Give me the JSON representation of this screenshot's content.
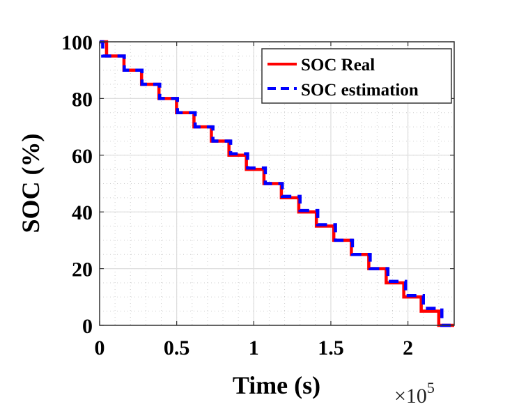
{
  "chart_data": {
    "type": "line",
    "title": "",
    "xlabel": "Time (s)",
    "ylabel": "SOC (%)",
    "x_multiplier": "×10",
    "x_multiplier_exp": "5",
    "xlim": [
      0,
      2.3
    ],
    "ylim": [
      0,
      100
    ],
    "xticks": [
      0,
      0.5,
      1,
      1.5,
      2
    ],
    "xtick_labels": [
      "0",
      "0.5",
      "1",
      "1.5",
      "2"
    ],
    "yticks": [
      0,
      20,
      40,
      60,
      80,
      100
    ],
    "ytick_labels": [
      "0",
      "20",
      "40",
      "60",
      "80",
      "100"
    ],
    "grid": true,
    "minor_grid": true,
    "legend_position": "top-right",
    "series": [
      {
        "name": "SOC Real",
        "color": "#ff0000",
        "style": "solid",
        "step_times": [
          0.045,
          0.158,
          0.272,
          0.385,
          0.499,
          0.612,
          0.725,
          0.839,
          0.952,
          1.066,
          1.179,
          1.292,
          1.406,
          1.519,
          1.633,
          1.746,
          1.859,
          1.973,
          2.086,
          2.2
        ],
        "levels": [
          100,
          95,
          90,
          85,
          80,
          75,
          70,
          65,
          60,
          55,
          50,
          45,
          40,
          35,
          30,
          25,
          20,
          15,
          10,
          5,
          0
        ]
      },
      {
        "name": "SOC estimation",
        "color": "#0000ff",
        "style": "dashed",
        "step_times": [
          0.02,
          0.16,
          0.275,
          0.39,
          0.505,
          0.62,
          0.735,
          0.85,
          0.96,
          1.075,
          1.185,
          1.3,
          1.415,
          1.53,
          1.64,
          1.755,
          1.87,
          1.985,
          2.1,
          2.22
        ],
        "levels": [
          100,
          95,
          90,
          85,
          80,
          75,
          70,
          65,
          60.5,
          55.5,
          50,
          45.5,
          40.5,
          35.5,
          30,
          25,
          20,
          15.5,
          10.5,
          6,
          0
        ]
      }
    ]
  }
}
